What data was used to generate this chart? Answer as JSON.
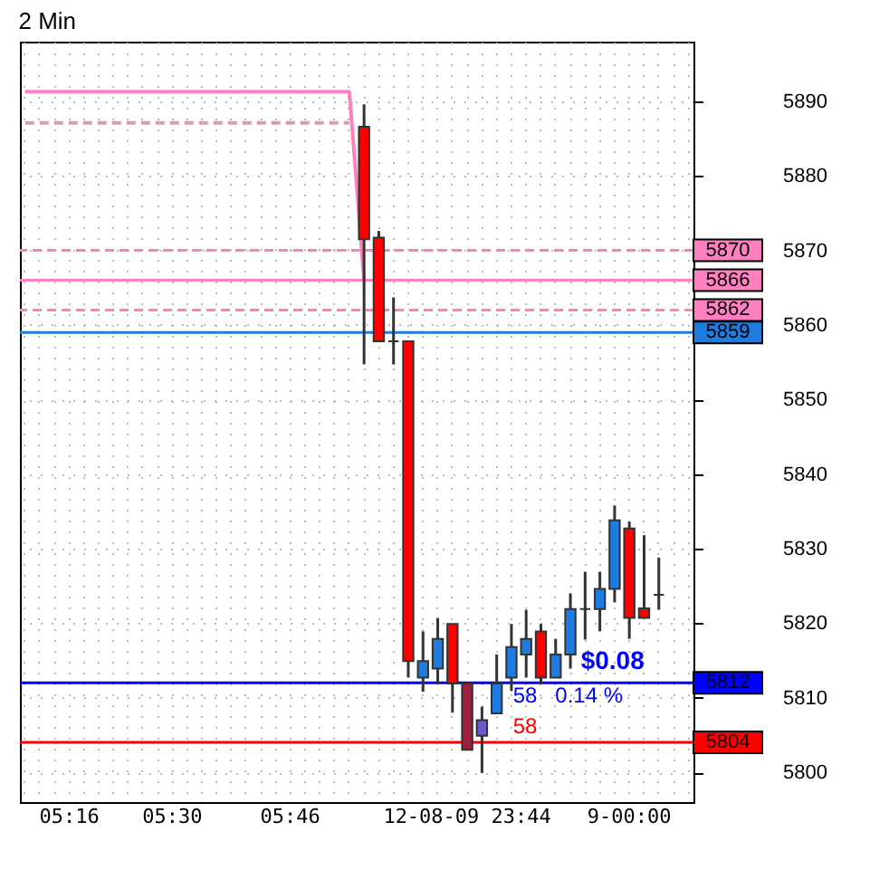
{
  "chart_data": {
    "type": "candlestick",
    "title": "2 Min",
    "categories": [
      null,
      null,
      null,
      "05:16",
      null,
      null,
      null,
      null,
      null,
      null,
      "05:30",
      null,
      null,
      null,
      null,
      null,
      null,
      null,
      "05:46",
      null,
      null,
      null,
      null,
      null,
      null,
      null,
      null,
      null,
      null,
      null,
      "12-08-09 23:44",
      null,
      null,
      null,
      null,
      null,
      null,
      null,
      null,
      null,
      null,
      "9-00:00",
      null,
      null,
      null,
      null
    ],
    "ohlc": [
      null,
      null,
      null,
      null,
      null,
      null,
      null,
      null,
      null,
      null,
      null,
      null,
      null,
      null,
      null,
      null,
      null,
      null,
      null,
      null,
      null,
      null,
      null,
      [
        5886.6,
        5889.6,
        5854.7,
        5871.5
      ],
      [
        5871.7,
        5872.6,
        5857.8,
        5857.8
      ],
      [
        5857.8,
        5863.7,
        5854.7,
        5857.8
      ],
      [
        5857.8,
        5857.8,
        5812.7,
        5814.9
      ],
      [
        5812.7,
        5818.9,
        5810.8,
        5814.9
      ],
      [
        5813.9,
        5820.7,
        5811.9,
        5817.9
      ],
      [
        5819.9,
        5819.9,
        5808.0,
        5811.9
      ],
      [
        5811.9,
        5811.9,
        5803.0,
        5803.0
      ],
      [
        5804.9,
        5808.8,
        5799.9,
        5807.0
      ],
      [
        5807.9,
        5815.8,
        5807.9,
        5811.9
      ],
      [
        5812.7,
        5819.9,
        5810.9,
        5816.8
      ],
      [
        5815.8,
        5821.8,
        5812.7,
        5817.9
      ],
      [
        5818.9,
        5819.9,
        5811.9,
        5812.7
      ],
      [
        5812.7,
        5817.9,
        5812.7,
        5815.8
      ],
      [
        5815.8,
        5824.0,
        5813.9,
        5821.9
      ],
      [
        5821.9,
        5826.9,
        5817.8,
        5821.9
      ],
      [
        5821.9,
        5826.9,
        5818.9,
        5824.6
      ],
      [
        5824.6,
        5835.8,
        5822.8,
        5833.8
      ],
      [
        5832.7,
        5833.6,
        5817.9,
        5820.7
      ],
      [
        5822.0,
        5831.8,
        5820.7,
        5820.7
      ],
      [
        5823.8,
        5828.8,
        5821.8,
        5823.8
      ],
      null,
      null
    ],
    "colors": [
      null,
      null,
      null,
      null,
      null,
      null,
      null,
      null,
      null,
      null,
      null,
      null,
      null,
      null,
      null,
      null,
      null,
      null,
      null,
      null,
      null,
      null,
      null,
      "#ff0000",
      "#ff0000",
      "#333333",
      "#ff0000",
      "#1e7be0",
      "#1e7be0",
      "#ff0000",
      "#a02040",
      "#6a5acd",
      "#1e7be0",
      "#1e7be0",
      "#1e7be0",
      "#ff0000",
      "#1e7be0",
      "#1e7be0",
      "#333333",
      "#1e7be0",
      "#1e7be0",
      "#ff0000",
      "#ff0000",
      "#333333",
      null,
      null
    ],
    "series": [
      {
        "type": "line",
        "color": "#ff80c0",
        "line_style": "solid",
        "values": [
          5891.3,
          5891.3,
          5891.3,
          5891.3,
          5891.3,
          5891.3,
          5891.3,
          5891.3,
          5891.3,
          5891.3,
          5891.3,
          5891.3,
          5891.3,
          5891.3,
          5891.3,
          5891.3,
          5891.3,
          5891.3,
          5891.3,
          5891.3,
          5891.3,
          5891.3,
          5891.3,
          5866,
          null,
          null,
          null,
          null,
          null,
          null,
          null,
          null,
          null,
          null,
          null,
          null,
          null,
          null,
          null,
          null,
          null,
          null,
          null,
          null,
          null,
          null
        ]
      },
      {
        "type": "line",
        "color": "#d0a0b8",
        "line_style": "dashed",
        "values": [
          5887.1,
          5887.1,
          5887.1,
          5887.1,
          5887.1,
          5887.1,
          5887.1,
          5887.1,
          5887.1,
          5887.1,
          5887.1,
          5887.1,
          5887.1,
          5887.1,
          5887.1,
          5887.1,
          5887.1,
          5887.1,
          5887.1,
          5887.1,
          5887.1,
          5887.1,
          5887.1,
          null,
          null,
          null,
          null,
          null,
          null,
          null,
          null,
          null,
          null,
          null,
          null,
          null,
          null,
          null,
          null,
          null,
          null,
          null,
          null,
          null,
          null,
          null
        ]
      }
    ],
    "ref_lines": [
      {
        "axis": "y",
        "value": 5870,
        "label": "5870",
        "color": "#ff80c0",
        "line_style": "dashed"
      },
      {
        "axis": "y",
        "value": 5866,
        "label": "5866",
        "color": "#ff80c0",
        "line_style": "solid"
      },
      {
        "axis": "y",
        "value": 5862,
        "label": "5862",
        "color": "#ff80c0",
        "line_style": "dashed"
      },
      {
        "axis": "y",
        "value": 5859,
        "label": "5859",
        "color": "#1e7be0",
        "line_style": "solid"
      },
      {
        "axis": "y",
        "value": 5812,
        "label": "5812",
        "color": "#0000ff",
        "line_style": "solid"
      },
      {
        "axis": "y",
        "value": 5804,
        "label": "5804",
        "color": "#ff0000",
        "line_style": "solid"
      }
    ],
    "annotations": [
      "$0.08",
      "58",
      "0.14 %",
      "58"
    ],
    "ylim": [
      5796,
      5898
    ],
    "yticks": [
      5800,
      5810,
      5820,
      5830,
      5840,
      5850,
      5860,
      5870,
      5880,
      5890
    ],
    "grid": true
  }
}
